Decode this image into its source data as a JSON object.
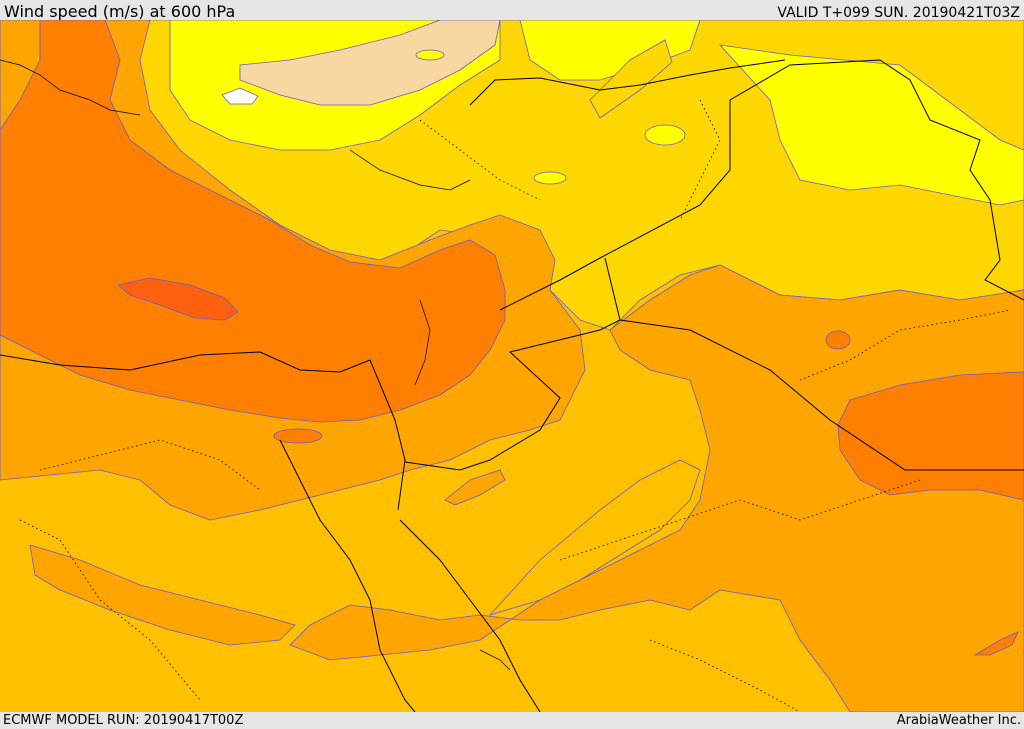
{
  "header": {
    "title": "Wind speed (m/s) at 600 hPa",
    "valid_time": "VALID T+099 SUN. 20190421T03Z"
  },
  "footer": {
    "model_run": "ECMWF MODEL RUN: 20190417T00Z",
    "credit": "ArabiaWeather Inc."
  },
  "colors": {
    "band_white": "#ffffff",
    "band_lightest": "#f8d8a0",
    "band_yellow": "#ffff00",
    "band_gold": "#ffd700",
    "band_amber": "#ffc000",
    "band_orange": "#ffa500",
    "band_dark_orange": "#ff8000",
    "band_red_orange": "#ff6010",
    "border_line": "#000000",
    "contour_line": "#6a5acd"
  }
}
